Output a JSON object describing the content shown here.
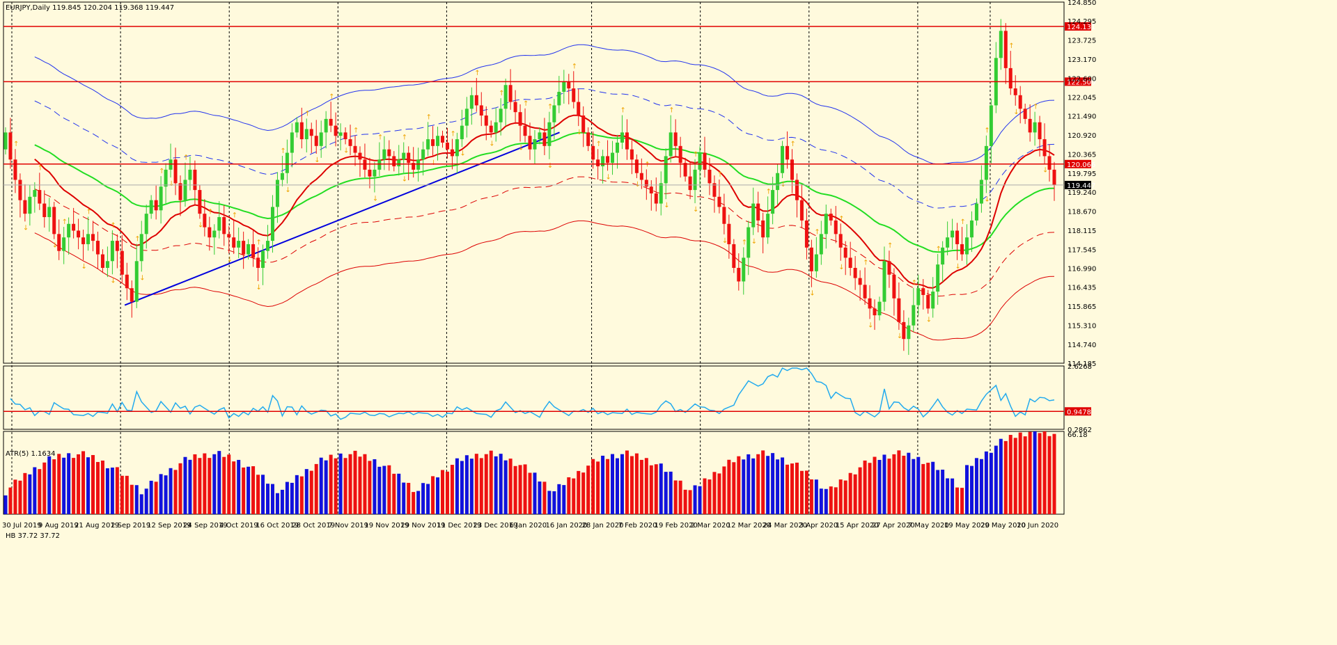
{
  "main_header": "EURJPY,Daily  119.845 120.204 119.368 119.447",
  "atr_header": "ATR(5) 1.1634",
  "hb_header": "HB 37.72 37.72",
  "colors": {
    "background": "#fffadd",
    "bull_candle": "#33cc33",
    "bear_candle": "#ee1111",
    "sr_line": "#e00000",
    "trend_line": "#0000dd",
    "ma_green": "#22dd22",
    "ma_red": "#dd0000",
    "band_blue": "#2233ee",
    "atr_line": "#22aaee",
    "hb_red": "#ee1111",
    "hb_blue": "#1111dd"
  },
  "chart_data": [
    {
      "type": "candlestick",
      "symbol": "EURJPY",
      "timeframe": "Daily",
      "ylim": [
        114.185,
        124.85
      ],
      "price_ticks": [
        "124.850",
        "124.295",
        "123.725",
        "123.170",
        "122.600",
        "122.045",
        "121.490",
        "120.920",
        "120.365",
        "119.795",
        "119.240",
        "118.670",
        "118.115",
        "117.545",
        "116.990",
        "116.435",
        "115.865",
        "115.310",
        "114.740",
        "114.185"
      ],
      "date_labels": [
        "30 Jul 2019",
        "9 Aug 2019",
        "21 Aug 2019",
        "2 Sep 2019",
        "12 Sep 2019",
        "24 Sep 2019",
        "4 Oct 2019",
        "16 Oct 2019",
        "28 Oct 2019",
        "7 Nov 2019",
        "19 Nov 2019",
        "29 Nov 2019",
        "11 Dec 2019",
        "23 Dec 2019",
        "6 Jan 2020",
        "16 Jan 2020",
        "28 Jan 2020",
        "7 Feb 2020",
        "19 Feb 2020",
        "2 Mar 2020",
        "12 Mar 2020",
        "24 Mar 2020",
        "3 Apr 2020",
        "15 Apr 2020",
        "27 Apr 2020",
        "7 May 2020",
        "19 May 2020",
        "29 May 2020",
        "10 Jun 2020"
      ],
      "levels": [
        {
          "label": "124.131",
          "value": 124.131
        },
        {
          "label": "122.500",
          "value": 122.5
        },
        {
          "label": "120.066",
          "value": 120.066
        }
      ],
      "current": {
        "label": "119.447",
        "value": 119.447
      },
      "trendline": {
        "from": {
          "date": "2 Sep 2019",
          "price": 115.9
        },
        "to": {
          "date": "17 Jan 2020",
          "price": 121.0
        }
      },
      "closes": [
        121.0,
        120.2,
        119.6,
        119.0,
        118.6,
        119.1,
        119.3,
        118.9,
        118.5,
        118.8,
        118.0,
        117.5,
        117.9,
        118.3,
        118.1,
        117.9,
        117.7,
        118.0,
        117.8,
        117.4,
        117.0,
        117.2,
        117.8,
        117.5,
        116.8,
        116.4,
        116.0,
        117.2,
        118.0,
        118.6,
        119.0,
        118.7,
        119.4,
        119.9,
        120.2,
        119.5,
        119.0,
        119.6,
        119.9,
        119.3,
        118.6,
        118.2,
        117.9,
        118.1,
        118.5,
        118.0,
        117.9,
        117.6,
        117.8,
        117.4,
        117.7,
        117.3,
        117.0,
        117.5,
        117.8,
        118.8,
        119.6,
        119.8,
        120.4,
        121.0,
        121.3,
        120.8,
        121.1,
        120.9,
        120.6,
        121.0,
        121.4,
        121.2,
        120.9,
        121.0,
        120.8,
        120.6,
        120.4,
        120.2,
        119.9,
        119.7,
        119.9,
        120.2,
        120.5,
        120.3,
        120.0,
        120.2,
        120.4,
        120.1,
        119.9,
        120.2,
        120.5,
        120.8,
        120.6,
        120.9,
        120.7,
        120.5,
        120.3,
        120.8,
        121.2,
        121.7,
        122.1,
        121.8,
        121.5,
        121.2,
        121.0,
        121.3,
        121.7,
        122.4,
        121.9,
        121.6,
        121.2,
        120.9,
        120.5,
        120.8,
        121.0,
        120.6,
        121.3,
        121.8,
        122.2,
        122.5,
        122.3,
        121.9,
        121.5,
        121.0,
        120.6,
        120.2,
        120.0,
        120.3,
        120.1,
        120.4,
        120.7,
        121.0,
        120.5,
        120.2,
        119.8,
        119.6,
        119.4,
        119.2,
        118.9,
        119.5,
        120.3,
        121.0,
        120.6,
        120.1,
        119.7,
        119.3,
        119.9,
        120.4,
        119.9,
        119.5,
        119.1,
        118.8,
        118.3,
        117.7,
        117.0,
        116.6,
        117.3,
        118.2,
        118.9,
        118.4,
        117.9,
        118.6,
        119.3,
        119.8,
        120.6,
        120.2,
        119.6,
        119.0,
        118.4,
        117.6,
        116.9,
        117.4,
        118.0,
        118.6,
        118.4,
        118.0,
        117.6,
        117.3,
        117.0,
        116.7,
        116.5,
        116.1,
        115.8,
        115.6,
        116.0,
        117.2,
        116.8,
        116.1,
        115.4,
        114.9,
        115.3,
        115.9,
        116.4,
        116.2,
        115.8,
        116.3,
        117.1,
        117.6,
        117.9,
        118.1,
        117.7,
        117.4,
        117.9,
        118.4,
        118.9,
        119.6,
        120.6,
        121.8,
        123.2,
        124.0,
        122.9,
        122.3,
        122.1,
        121.7,
        121.4,
        121.0,
        121.3,
        120.8,
        120.3,
        119.9,
        119.447
      ],
      "atr": {
        "ylim": [
          0.2862,
          2.6268
        ],
        "ticks": [
          "2.6268",
          "0.9478",
          "0.2862"
        ],
        "level": {
          "label": "0.9478",
          "value": 0.9478
        }
      },
      "hb": {
        "ylim": [
          0,
          66.18
        ],
        "ticks": [
          "66.18"
        ],
        "last": 37.72
      }
    }
  ]
}
